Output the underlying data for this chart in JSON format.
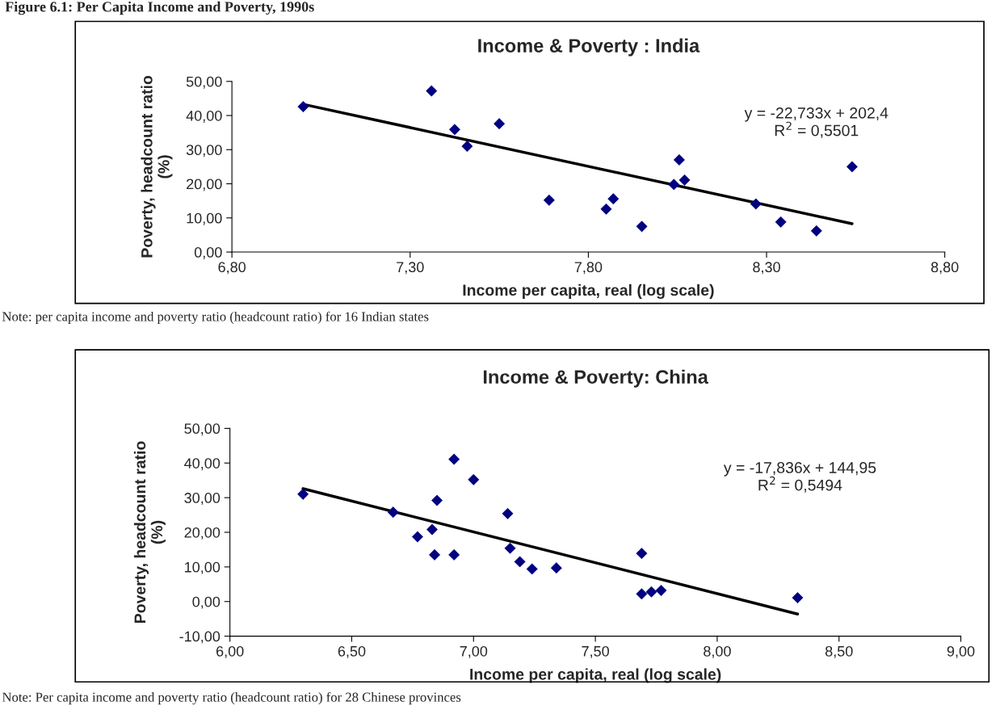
{
  "chart_data": [
    {
      "type": "scatter",
      "title": "Income & Poverty : India",
      "xlabel": "Income per capita, real (log scale)",
      "ylabel": "Poverty, headcount ratio\n(%)",
      "annotations": [
        "Figure 6.1: Per Capita Income and Poverty, 1990s",
        "y = -22,733x + 202,4\nR$^{2}$ = 0,5501",
        "Note: per capita income and poverty ratio (headcount ratio) for 16 Indian states"
      ],
      "series": [
        {
          "color": "#000080",
          "marker": "diamond",
          "x": [
            7.0,
            7.36,
            7.425,
            7.46,
            7.55,
            7.69,
            7.85,
            7.87,
            7.95,
            8.04,
            8.055,
            8.07,
            8.27,
            8.34,
            8.44,
            8.54
          ],
          "values": [
            42.6,
            47.2,
            35.9,
            31.0,
            37.6,
            15.2,
            12.6,
            15.6,
            7.5,
            19.8,
            27.0,
            21.1,
            14.1,
            8.8,
            6.2,
            25.0
          ]
        },
        {
          "type": "line",
          "color": "#000000",
          "marker": "none",
          "x": [
            7.0,
            8.54
          ],
          "values": [
            43.3,
            8.3
          ]
        }
      ],
      "xlim": [
        6.8,
        8.8
      ],
      "xticks": [
        {
          "value": 6.8,
          "label": "6,80"
        },
        {
          "value": 7.3,
          "label": "7,30"
        },
        {
          "value": 7.8,
          "label": "7,80"
        },
        {
          "value": 8.3,
          "label": "8,30"
        },
        {
          "value": 8.8,
          "label": "8,80"
        }
      ],
      "ylim": [
        0,
        50
      ],
      "yticks": [
        {
          "value": 0,
          "label": "0,00"
        },
        {
          "value": 10,
          "label": "10,00"
        },
        {
          "value": 20,
          "label": "20,00"
        },
        {
          "value": 30,
          "label": "30,00"
        },
        {
          "value": 40,
          "label": "40,00"
        },
        {
          "value": 50,
          "label": "50,00"
        }
      ]
    },
    {
      "type": "scatter",
      "title": "Income & Poverty: China",
      "xlabel": "Income per capita, real (log scale)",
      "ylabel": "Poverty, headcount ratio\n(%)",
      "annotations": [
        "y = -17,836x + 144,95\nR$^{2}$ = 0,5494",
        "Note: Per capita income and poverty ratio (headcount ratio) for 28 Chinese provinces"
      ],
      "series": [
        {
          "color": "#000080",
          "marker": "diamond",
          "x": [
            6.3,
            6.67,
            6.77,
            6.83,
            6.84,
            6.85,
            6.92,
            6.92,
            7.0,
            7.14,
            7.15,
            7.19,
            7.24,
            7.34,
            7.69,
            7.69,
            7.73,
            7.77,
            8.33
          ],
          "values": [
            31.0,
            25.8,
            18.7,
            20.8,
            13.5,
            29.2,
            41.1,
            13.5,
            35.2,
            25.4,
            15.4,
            11.5,
            9.4,
            9.7,
            13.9,
            2.2,
            2.8,
            3.2,
            1.1
          ]
        },
        {
          "type": "line",
          "color": "#000000",
          "marker": "none",
          "x": [
            6.3,
            8.33
          ],
          "values": [
            32.6,
            -3.6
          ]
        }
      ],
      "xlim": [
        6.0,
        9.0
      ],
      "xticks": [
        {
          "value": 6.0,
          "label": "6,00"
        },
        {
          "value": 6.5,
          "label": "6,50"
        },
        {
          "value": 7.0,
          "label": "7,00"
        },
        {
          "value": 7.5,
          "label": "7,50"
        },
        {
          "value": 8.0,
          "label": "8,00"
        },
        {
          "value": 8.5,
          "label": "8,50"
        },
        {
          "value": 9.0,
          "label": "9,00"
        }
      ],
      "ylim": [
        -10,
        50
      ],
      "yticks": [
        {
          "value": -10,
          "label": "-10,00"
        },
        {
          "value": 0,
          "label": "0,00"
        },
        {
          "value": 10,
          "label": "10,00"
        },
        {
          "value": 20,
          "label": "20,00"
        },
        {
          "value": 30,
          "label": "30,00"
        },
        {
          "value": 40,
          "label": "40,00"
        },
        {
          "value": 50,
          "label": "50,00"
        }
      ]
    }
  ]
}
